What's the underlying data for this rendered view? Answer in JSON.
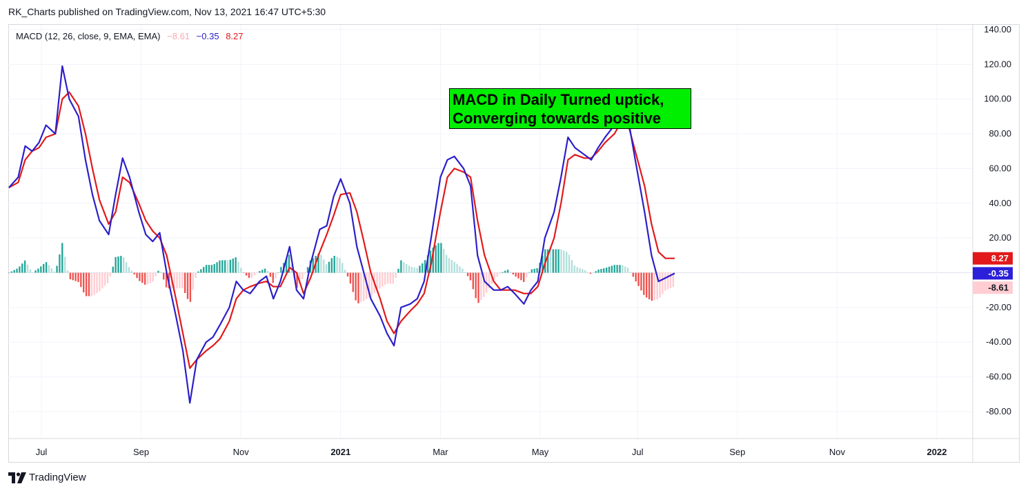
{
  "header": {
    "published_text": "RK_Charts published on TradingView.com, Nov 13, 2021 16:47 UTC+5:30"
  },
  "legend": {
    "title": "MACD (12, 26, close, 9, EMA, EMA)",
    "histogram_value": "−8.61",
    "macd_value": "−0.35",
    "signal_value": "8.27"
  },
  "annotation": {
    "line1": "MACD in Daily Turned uptick,",
    "line2": "Converging towards positive"
  },
  "footer": {
    "brand": "TradingView",
    "icon": "tradingview-logo-icon"
  },
  "colors": {
    "macd": "#2b1fc9",
    "signal": "#e2191a",
    "hist_pos_strong": "#26a69a",
    "hist_pos_weak": "#b2dfdb",
    "hist_neg_strong": "#ef5350",
    "hist_neg_weak": "#ffcdd2",
    "annotation_bg": "#00ee00"
  },
  "chart_data": {
    "type": "line",
    "title": "",
    "ylim": [
      -95,
      140
    ],
    "y_ticks": [
      "140.00",
      "120.00",
      "100.00",
      "80.00",
      "60.00",
      "40.00",
      "20.00",
      "-20.00",
      "-40.00",
      "-60.00",
      "-80.00"
    ],
    "y_tick_values": [
      140,
      120,
      100,
      80,
      60,
      40,
      20,
      -20,
      -40,
      -60,
      -80
    ],
    "x_ticks": [
      "Jul",
      "Sep",
      "Nov",
      "2021",
      "Mar",
      "May",
      "Jul",
      "Sep",
      "Nov",
      "2022"
    ],
    "x_tick_positions": [
      0.14,
      0.57,
      1.0,
      1.43,
      1.86,
      2.29,
      2.71,
      3.14,
      3.57,
      4.0
    ],
    "x_range": [
      0,
      4.3
    ],
    "x_unit_note": "",
    "price_labels": [
      {
        "text": "8.27",
        "value": 8.27,
        "series": "signal"
      },
      {
        "text": "-0.35",
        "value": -0.35,
        "series": "macd"
      },
      {
        "text": "-8.61",
        "value": -8.61,
        "series": "histogram"
      }
    ],
    "series": [
      {
        "name": "MACD",
        "x": [
          0,
          0.04,
          0.07,
          0.1,
          0.13,
          0.16,
          0.2,
          0.23,
          0.26,
          0.3,
          0.33,
          0.36,
          0.39,
          0.43,
          0.46,
          0.49,
          0.52,
          0.56,
          0.59,
          0.62,
          0.65,
          0.68,
          0.72,
          0.75,
          0.78,
          0.81,
          0.85,
          0.88,
          0.91,
          0.95,
          0.98,
          1.01,
          1.04,
          1.08,
          1.11,
          1.14,
          1.17,
          1.21,
          1.24,
          1.27,
          1.3,
          1.34,
          1.37,
          1.4,
          1.43,
          1.47,
          1.5,
          1.53,
          1.56,
          1.6,
          1.63,
          1.66,
          1.69,
          1.73,
          1.76,
          1.79,
          1.82,
          1.86,
          1.89,
          1.92,
          1.96,
          1.99,
          2.02,
          2.05,
          2.09,
          2.12,
          2.15,
          2.18,
          2.22,
          2.25,
          2.28,
          2.31,
          2.35,
          2.38,
          2.41,
          2.44,
          2.48,
          2.51,
          2.54,
          2.57,
          2.61,
          2.64,
          2.67,
          2.7,
          2.74,
          2.77,
          2.8,
          2.83,
          2.87,
          2.9,
          2.93,
          2.97,
          3.0,
          3.03,
          3.06,
          3.1,
          3.13,
          3.16,
          3.19,
          3.23,
          3.26,
          3.29,
          3.32,
          3.36,
          3.39,
          3.42,
          3.45,
          3.49,
          3.52,
          3.55,
          3.58,
          3.62,
          3.65,
          3.68
        ],
        "values": [
          49,
          55,
          73,
          70,
          75,
          85,
          80,
          119,
          100,
          90,
          65,
          45,
          30,
          22,
          45,
          66,
          55,
          35,
          22,
          18,
          23,
          0,
          -25,
          -45,
          -75,
          -50,
          -40,
          -37,
          -30,
          -20,
          -5,
          -10,
          -12,
          -5,
          -2,
          -15,
          -5,
          15,
          -10,
          -15,
          5,
          25,
          27,
          44,
          54,
          40,
          15,
          0,
          -15,
          -25,
          -35,
          -42,
          -20,
          -18,
          -15,
          -5,
          20,
          55,
          65,
          67,
          60,
          50,
          10,
          -5,
          -10,
          -10,
          -8,
          -12,
          -18,
          -10,
          -5,
          20,
          35,
          55,
          78,
          72,
          68,
          65,
          72,
          78,
          85,
          92,
          88,
          65,
          35,
          10,
          -5,
          -3,
          -0.35,
          null,
          null,
          null,
          null,
          null,
          null,
          null,
          null,
          null,
          null,
          null,
          null,
          null,
          null,
          null,
          null,
          null,
          null,
          null,
          null,
          null,
          null,
          null,
          null,
          null
        ]
      },
      {
        "name": "Signal",
        "x": [
          0,
          0.04,
          0.07,
          0.1,
          0.13,
          0.16,
          0.2,
          0.23,
          0.26,
          0.3,
          0.33,
          0.36,
          0.39,
          0.43,
          0.46,
          0.49,
          0.52,
          0.56,
          0.59,
          0.62,
          0.65,
          0.68,
          0.72,
          0.75,
          0.78,
          0.81,
          0.85,
          0.88,
          0.91,
          0.95,
          0.98,
          1.01,
          1.04,
          1.08,
          1.11,
          1.14,
          1.17,
          1.21,
          1.24,
          1.27,
          1.3,
          1.34,
          1.37,
          1.4,
          1.43,
          1.47,
          1.5,
          1.53,
          1.56,
          1.6,
          1.63,
          1.66,
          1.69,
          1.73,
          1.76,
          1.79,
          1.82,
          1.86,
          1.89,
          1.92,
          1.96,
          1.99,
          2.02,
          2.05,
          2.09,
          2.12,
          2.15,
          2.18,
          2.22,
          2.25,
          2.28,
          2.31,
          2.35,
          2.38,
          2.41,
          2.44,
          2.48,
          2.51,
          2.54,
          2.57,
          2.61,
          2.64,
          2.67,
          2.7,
          2.74,
          2.77,
          2.8,
          2.83,
          2.87
        ],
        "values": [
          49,
          52,
          65,
          70,
          72,
          78,
          80,
          100,
          104,
          96,
          80,
          60,
          42,
          28,
          35,
          55,
          52,
          40,
          30,
          24,
          20,
          10,
          -15,
          -35,
          -55,
          -50,
          -45,
          -42,
          -38,
          -28,
          -15,
          -10,
          -8,
          -6,
          -5,
          -8,
          -8,
          3,
          0,
          -12,
          -3,
          12,
          22,
          33,
          45,
          46,
          35,
          18,
          0,
          -15,
          -28,
          -35,
          -28,
          -22,
          -18,
          -12,
          5,
          35,
          55,
          60,
          58,
          55,
          30,
          10,
          -5,
          -10,
          -10,
          -10,
          -12,
          -12,
          -8,
          5,
          20,
          40,
          65,
          68,
          66,
          66,
          70,
          75,
          80,
          87,
          85,
          70,
          50,
          28,
          12,
          8.27,
          8.27
        ],
        "values_note": ""
      }
    ]
  }
}
